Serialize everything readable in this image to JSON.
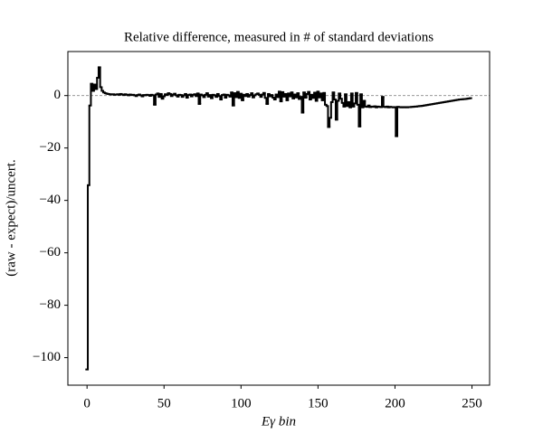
{
  "chart_data": {
    "type": "step",
    "title": "Relative difference, measured in # of standard deviations",
    "xlabel": "Eγ bin",
    "ylabel": "(raw - expect)/uncert.",
    "color": "#000000",
    "hline": 0,
    "xlim": [
      -12.45,
      261.45
    ],
    "ylim": [
      -110.5,
      16.8
    ],
    "xticks": [
      0,
      50,
      100,
      150,
      200,
      250
    ],
    "yticks": [
      {
        "value": -100,
        "label": "−100"
      },
      {
        "value": -80,
        "label": "−80"
      },
      {
        "value": -60,
        "label": "−60"
      },
      {
        "value": -40,
        "label": "−40"
      },
      {
        "value": -20,
        "label": "−20"
      },
      0
    ],
    "x": [
      0,
      1,
      2,
      3,
      4,
      5,
      6,
      7,
      8,
      9,
      10,
      11,
      12,
      13,
      14,
      15,
      16,
      17,
      18,
      19,
      20,
      21,
      22,
      23,
      24,
      25,
      26,
      27,
      28,
      29,
      30,
      31,
      32,
      33,
      34,
      35,
      36,
      37,
      38,
      39,
      40,
      41,
      42,
      43,
      44,
      45,
      46,
      47,
      48,
      49,
      50,
      51,
      52,
      53,
      54,
      55,
      56,
      57,
      58,
      59,
      60,
      61,
      62,
      63,
      64,
      65,
      66,
      67,
      68,
      69,
      70,
      71,
      72,
      73,
      74,
      75,
      76,
      77,
      78,
      79,
      80,
      81,
      82,
      83,
      84,
      85,
      86,
      87,
      88,
      89,
      90,
      91,
      92,
      93,
      94,
      95,
      96,
      97,
      98,
      99,
      100,
      101,
      102,
      103,
      104,
      105,
      106,
      107,
      108,
      109,
      110,
      111,
      112,
      113,
      114,
      115,
      116,
      117,
      118,
      119,
      120,
      121,
      122,
      123,
      124,
      125,
      126,
      127,
      128,
      129,
      130,
      131,
      132,
      133,
      134,
      135,
      136,
      137,
      138,
      139,
      140,
      141,
      142,
      143,
      144,
      145,
      146,
      147,
      148,
      149,
      150,
      151,
      152,
      153,
      154,
      155,
      156,
      157,
      158,
      159,
      160,
      161,
      162,
      163,
      164,
      165,
      166,
      167,
      168,
      169,
      170,
      171,
      172,
      173,
      174,
      175,
      176,
      177,
      178,
      179,
      180,
      181,
      182,
      183,
      184,
      185,
      186,
      187,
      188,
      189,
      190,
      191,
      192,
      193,
      194,
      195,
      196,
      197,
      198,
      199,
      200,
      201,
      202,
      203,
      204,
      205,
      206,
      207,
      208,
      209,
      210,
      211,
      212,
      213,
      214,
      215,
      216,
      217,
      218,
      219,
      220,
      221,
      222,
      223,
      224,
      225,
      226,
      227,
      228,
      229,
      230,
      231,
      232,
      233,
      234,
      235,
      236,
      237,
      238,
      239,
      240,
      241,
      242,
      243,
      244,
      245,
      246,
      247,
      248,
      249
    ],
    "values": [
      -104.5,
      -34.2,
      -3.8,
      4.5,
      1.8,
      4.2,
      2.5,
      6.8,
      10.8,
      3.2,
      1.8,
      1.2,
      0.9,
      0.7,
      0.6,
      0.5,
      0.4,
      0.5,
      0.3,
      0.4,
      0.5,
      0.3,
      0.6,
      0.4,
      0.2,
      0.5,
      0.3,
      0.1,
      0.4,
      0.2,
      0.3,
      0.1,
      -0.2,
      0.2,
      0.4,
      0.1,
      -0.3,
      0.2,
      0.1,
      0.3,
      0.2,
      -0.1,
      0.3,
      0.1,
      -3.5,
      0.4,
      0.8,
      -0.5,
      0.6,
      -1.2,
      -0.3,
      0.5,
      0.2,
      0.9,
      0.6,
      -0.2,
      0.4,
      0.7,
      0.1,
      -0.4,
      0.3,
      0.2,
      -0.5,
      0.1,
      0.6,
      -0.8,
      0.2,
      0.4,
      -0.3,
      0.3,
      0.5,
      -0.2,
      0.8,
      -3.2,
      0.4,
      0.1,
      -0.6,
      0.3,
      0.9,
      -0.4,
      0.2,
      -1.0,
      0.3,
      0.1,
      -0.5,
      0.6,
      -0.2,
      -1.5,
      0.2,
      0.4,
      -0.8,
      0.3,
      0.1,
      -0.4,
      1.2,
      -3.8,
      0.9,
      -0.6,
      1.4,
      -0.9,
      0.7,
      -1.8,
      0.3,
      -0.2,
      0.6,
      -0.4,
      0.2,
      0.9,
      -0.7,
      0.1,
      0.5,
      0.8,
      0.3,
      -0.5,
      0.4,
      1.0,
      -0.9,
      -3.2,
      0.6,
      -0.3,
      0.2,
      -0.8,
      -1.5,
      0.4,
      -0.6,
      1.5,
      -2.2,
      1.3,
      -0.4,
      0.6,
      -1.8,
      0.8,
      -0.3,
      1.2,
      -1.1,
      0.4,
      -0.7,
      0.9,
      -1.3,
      -0.5,
      -6.5,
      1.2,
      -0.8,
      0.6,
      1.4,
      -1.5,
      0.3,
      -0.9,
      1.1,
      -2.0,
      1.5,
      -0.7,
      0.8,
      -1.8,
      1.0,
      -3.5,
      -4.0,
      -12.0,
      -8.5,
      -2.5,
      1.2,
      -1.5,
      -9.2,
      -2.0,
      0.8,
      -1.2,
      -2.8,
      -4.2,
      0.5,
      -4.0,
      -2.5,
      -4.5,
      0.8,
      -4.2,
      -3.0,
      1.0,
      -3.5,
      -11.8,
      0.5,
      -4.5,
      -2.0,
      -4.2,
      -4.3,
      -3.8,
      -4.4,
      -4.2,
      -4.3,
      -4.1,
      -4.5,
      -4.2,
      -4.3,
      -4.4,
      -0.5,
      -4.3,
      -4.4,
      -4.2,
      -4.5,
      -4.3,
      -4.4,
      -4.5,
      -4.4,
      -15.5,
      -4.3,
      -4.4,
      -4.5,
      -4.4,
      -4.5,
      -4.4,
      -4.5,
      -4.4,
      -4.4,
      -4.3,
      -4.3,
      -4.2,
      -4.2,
      -4.1,
      -4.0,
      -4.0,
      -3.9,
      -3.8,
      -3.7,
      -3.6,
      -3.5,
      -3.4,
      -3.3,
      -3.2,
      -3.1,
      -3.0,
      -2.9,
      -2.8,
      -2.7,
      -2.6,
      -2.5,
      -2.4,
      -2.3,
      -2.2,
      -2.1,
      -2.0,
      -1.9,
      -1.8,
      -1.7,
      -1.6,
      -1.5,
      -1.45,
      -1.4,
      -1.35,
      -1.3,
      -1.2,
      -1.1,
      -1.0
    ]
  }
}
